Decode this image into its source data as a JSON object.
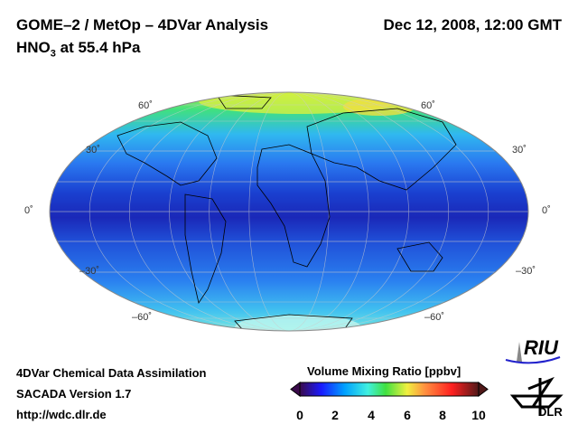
{
  "header": {
    "title": "GOME–2 / MetOp – 4DVar Analysis",
    "species": "HNO",
    "species_sub": "3",
    "level": " at 55.4 hPa",
    "date": "Dec 12, 2008, 12:00 GMT"
  },
  "map": {
    "lat_labels_left": [
      "60˚",
      "30˚",
      "0˚",
      "–30˚",
      "–60˚"
    ],
    "lat_labels_right": [
      "60˚",
      "30˚",
      "0˚",
      "–30˚",
      "–60˚"
    ]
  },
  "colorbar": {
    "title": "Volume Mixing Ratio [ppbv]",
    "ticks": [
      "0",
      "2",
      "4",
      "6",
      "8",
      "10"
    ],
    "range": [
      0,
      10
    ],
    "colors": [
      "#3a0a4a",
      "#1a1aff",
      "#00a0ff",
      "#40f0e0",
      "#40e040",
      "#f0f040",
      "#ff9040",
      "#ff2020",
      "#501818"
    ]
  },
  "footer": {
    "line1": "4DVar Chemical Data Assimilation",
    "line2": "SACADA Version 1.7",
    "line3": "http://wdc.dlr.de"
  },
  "logos": {
    "riu": "RIU",
    "dlr": "DLR"
  }
}
